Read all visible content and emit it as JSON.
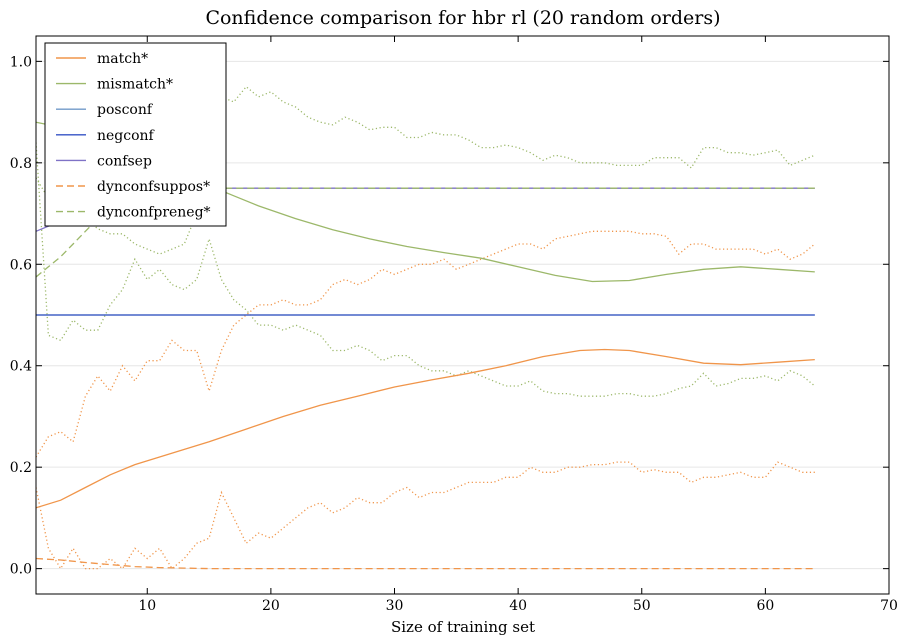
{
  "chart_data": {
    "type": "line",
    "title": "Confidence comparison for hbr rl (20 random orders)",
    "xlabel": "Size of training set",
    "ylabel": "",
    "xlim": [
      1,
      70
    ],
    "ylim": [
      -0.05,
      1.05
    ],
    "xticks": [
      10,
      20,
      30,
      40,
      50,
      60,
      70
    ],
    "yticks": [
      0.0,
      0.2,
      0.4,
      0.6,
      0.8,
      1.0
    ],
    "ytick_labels": [
      "0.0",
      "0.2",
      "0.4",
      "0.6",
      "0.8",
      "1.0"
    ],
    "grid": "horizontal",
    "legend_position": "upper-left",
    "series": [
      {
        "name": "match*",
        "color": "#f0954a",
        "style": "solid",
        "x": [
          1,
          3,
          5,
          7,
          9,
          11,
          13,
          15,
          18,
          21,
          24,
          27,
          30,
          33,
          36,
          39,
          42,
          45,
          47,
          49,
          52,
          55,
          58,
          61,
          64
        ],
        "y": [
          0.12,
          0.135,
          0.16,
          0.185,
          0.205,
          0.22,
          0.235,
          0.25,
          0.275,
          0.3,
          0.322,
          0.34,
          0.358,
          0.372,
          0.385,
          0.4,
          0.418,
          0.43,
          0.432,
          0.43,
          0.418,
          0.405,
          0.402,
          0.407,
          0.412
        ]
      },
      {
        "name": "mismatch*",
        "color": "#9cb86a",
        "style": "solid",
        "x": [
          1,
          3,
          5,
          7,
          9,
          11,
          13,
          15,
          17,
          19,
          22,
          25,
          28,
          31,
          34,
          37,
          40,
          43,
          46,
          49,
          52,
          55,
          58,
          61,
          64
        ],
        "y": [
          0.88,
          0.87,
          0.85,
          0.83,
          0.81,
          0.79,
          0.77,
          0.755,
          0.735,
          0.715,
          0.69,
          0.668,
          0.65,
          0.635,
          0.623,
          0.612,
          0.595,
          0.578,
          0.566,
          0.568,
          0.58,
          0.59,
          0.595,
          0.59,
          0.585
        ]
      },
      {
        "name": "posconf",
        "color": "#7099c8",
        "style": "solid",
        "x": [
          1,
          64
        ],
        "y": [
          0.5,
          0.5
        ]
      },
      {
        "name": "negconf",
        "color": "#3553c4",
        "style": "solid",
        "x": [
          1,
          64
        ],
        "y": [
          0.5,
          0.5
        ]
      },
      {
        "name": "confsep",
        "color": "#7f72c6",
        "style": "solid",
        "x": [
          1,
          2,
          3,
          4,
          5,
          6,
          7,
          8,
          9,
          10,
          12,
          14,
          16,
          18,
          64
        ],
        "y": [
          0.665,
          0.675,
          0.685,
          0.7,
          0.71,
          0.72,
          0.73,
          0.735,
          0.74,
          0.745,
          0.748,
          0.75,
          0.75,
          0.75,
          0.75
        ]
      },
      {
        "name": "dynconfsuppos*",
        "color": "#f0954a",
        "style": "dashed",
        "x": [
          1,
          3,
          5,
          7,
          9,
          11,
          13,
          15,
          20,
          30,
          40,
          50,
          64
        ],
        "y": [
          0.02,
          0.017,
          0.012,
          0.008,
          0.004,
          0.002,
          0.001,
          0.0,
          0.0,
          0.0,
          0.0,
          0.0,
          0.0
        ]
      },
      {
        "name": "dynconfpreneg*",
        "color": "#9cb86a",
        "style": "dashed",
        "x": [
          1,
          2,
          3,
          4,
          5,
          6,
          7,
          8,
          9,
          10,
          12,
          14,
          16,
          18,
          64
        ],
        "y": [
          0.575,
          0.595,
          0.615,
          0.64,
          0.665,
          0.69,
          0.71,
          0.725,
          0.735,
          0.742,
          0.747,
          0.75,
          0.75,
          0.75,
          0.75
        ]
      }
    ],
    "bands": [
      {
        "color": "#f0954a",
        "style": "dotted",
        "x": [
          1,
          2,
          3,
          4,
          5,
          6,
          7,
          8,
          9,
          10,
          11,
          12,
          13,
          14,
          15,
          16,
          17,
          18,
          19,
          20,
          21,
          22,
          23,
          24,
          25,
          26,
          27,
          28,
          29,
          30,
          31,
          32,
          33,
          34,
          35,
          36,
          37,
          38,
          39,
          40,
          41,
          42,
          43,
          44,
          45,
          46,
          47,
          48,
          49,
          50,
          51,
          52,
          53,
          54,
          55,
          56,
          57,
          58,
          59,
          60,
          61,
          62,
          63,
          64
        ],
        "y": [
          0.22,
          0.26,
          0.27,
          0.25,
          0.34,
          0.38,
          0.35,
          0.4,
          0.37,
          0.41,
          0.41,
          0.45,
          0.43,
          0.43,
          0.35,
          0.43,
          0.48,
          0.5,
          0.52,
          0.52,
          0.53,
          0.52,
          0.52,
          0.53,
          0.56,
          0.57,
          0.56,
          0.57,
          0.59,
          0.58,
          0.59,
          0.6,
          0.6,
          0.61,
          0.59,
          0.6,
          0.61,
          0.62,
          0.63,
          0.64,
          0.64,
          0.63,
          0.65,
          0.655,
          0.66,
          0.665,
          0.665,
          0.665,
          0.665,
          0.66,
          0.66,
          0.655,
          0.62,
          0.64,
          0.64,
          0.63,
          0.63,
          0.63,
          0.63,
          0.62,
          0.63,
          0.61,
          0.62,
          0.64
        ]
      },
      {
        "color": "#f0954a",
        "style": "dotted",
        "x": [
          1,
          2,
          3,
          4,
          5,
          6,
          7,
          8,
          9,
          10,
          11,
          12,
          13,
          14,
          15,
          16,
          17,
          18,
          19,
          20,
          21,
          22,
          23,
          24,
          25,
          26,
          27,
          28,
          29,
          30,
          31,
          32,
          33,
          34,
          35,
          36,
          37,
          38,
          39,
          40,
          41,
          42,
          43,
          44,
          45,
          46,
          47,
          48,
          49,
          50,
          51,
          52,
          53,
          54,
          55,
          56,
          57,
          58,
          59,
          60,
          61,
          62,
          63,
          64
        ],
        "y": [
          0.16,
          0.04,
          0.0,
          0.04,
          0.0,
          0.0,
          0.02,
          0.0,
          0.04,
          0.02,
          0.04,
          0.0,
          0.02,
          0.05,
          0.06,
          0.15,
          0.1,
          0.05,
          0.07,
          0.06,
          0.08,
          0.1,
          0.12,
          0.13,
          0.11,
          0.12,
          0.14,
          0.13,
          0.13,
          0.15,
          0.16,
          0.14,
          0.15,
          0.15,
          0.16,
          0.17,
          0.17,
          0.17,
          0.18,
          0.18,
          0.2,
          0.19,
          0.19,
          0.2,
          0.2,
          0.205,
          0.205,
          0.21,
          0.21,
          0.19,
          0.195,
          0.19,
          0.19,
          0.17,
          0.18,
          0.18,
          0.185,
          0.19,
          0.18,
          0.18,
          0.21,
          0.2,
          0.19,
          0.19
        ]
      },
      {
        "color": "#9cb86a",
        "style": "dotted",
        "x": [
          1,
          2,
          3,
          4,
          5,
          6,
          7,
          8,
          9,
          10,
          11,
          12,
          13,
          14,
          15,
          16,
          17,
          18,
          19,
          20,
          21,
          22,
          23,
          24,
          25,
          26,
          27,
          28,
          29,
          30,
          31,
          32,
          33,
          34,
          35,
          36,
          37,
          38,
          39,
          40,
          41,
          42,
          43,
          44,
          45,
          46,
          47,
          48,
          49,
          50,
          51,
          52,
          53,
          54,
          55,
          56,
          57,
          58,
          59,
          60,
          61,
          62,
          63,
          64
        ],
        "y": [
          0.77,
          0.73,
          0.72,
          0.7,
          0.69,
          0.67,
          0.66,
          0.66,
          0.64,
          0.63,
          0.62,
          0.63,
          0.64,
          0.7,
          0.75,
          0.93,
          0.92,
          0.95,
          0.93,
          0.94,
          0.92,
          0.91,
          0.89,
          0.88,
          0.875,
          0.89,
          0.88,
          0.865,
          0.87,
          0.87,
          0.85,
          0.85,
          0.86,
          0.855,
          0.855,
          0.845,
          0.83,
          0.83,
          0.835,
          0.83,
          0.82,
          0.805,
          0.815,
          0.81,
          0.8,
          0.8,
          0.8,
          0.795,
          0.795,
          0.795,
          0.81,
          0.81,
          0.81,
          0.79,
          0.83,
          0.83,
          0.82,
          0.82,
          0.815,
          0.82,
          0.825,
          0.795,
          0.805,
          0.815
        ]
      },
      {
        "color": "#9cb86a",
        "style": "dotted",
        "x": [
          1,
          2,
          3,
          4,
          5,
          6,
          7,
          8,
          9,
          10,
          11,
          12,
          13,
          14,
          15,
          16,
          17,
          18,
          19,
          20,
          21,
          22,
          23,
          24,
          25,
          26,
          27,
          28,
          29,
          30,
          31,
          32,
          33,
          34,
          35,
          36,
          37,
          38,
          39,
          40,
          41,
          42,
          43,
          44,
          45,
          46,
          47,
          48,
          49,
          50,
          51,
          52,
          53,
          54,
          55,
          56,
          57,
          58,
          59,
          60,
          61,
          62,
          63,
          64
        ],
        "y": [
          0.84,
          0.46,
          0.45,
          0.49,
          0.47,
          0.47,
          0.52,
          0.55,
          0.61,
          0.57,
          0.59,
          0.56,
          0.55,
          0.57,
          0.65,
          0.57,
          0.53,
          0.51,
          0.48,
          0.48,
          0.47,
          0.48,
          0.47,
          0.46,
          0.43,
          0.43,
          0.44,
          0.43,
          0.41,
          0.42,
          0.42,
          0.4,
          0.39,
          0.39,
          0.38,
          0.39,
          0.38,
          0.37,
          0.36,
          0.36,
          0.37,
          0.35,
          0.345,
          0.345,
          0.34,
          0.34,
          0.34,
          0.345,
          0.345,
          0.34,
          0.34,
          0.345,
          0.355,
          0.36,
          0.385,
          0.36,
          0.365,
          0.375,
          0.375,
          0.38,
          0.37,
          0.39,
          0.38,
          0.36
        ]
      }
    ]
  }
}
